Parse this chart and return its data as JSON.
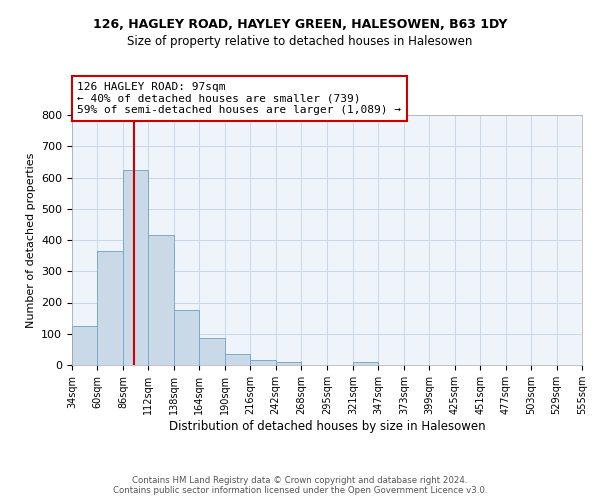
{
  "title1": "126, HAGLEY ROAD, HAYLEY GREEN, HALESOWEN, B63 1DY",
  "title2": "Size of property relative to detached houses in Halesowen",
  "xlabel": "Distribution of detached houses by size in Halesowen",
  "ylabel": "Number of detached properties",
  "footer1": "Contains HM Land Registry data © Crown copyright and database right 2024.",
  "footer2": "Contains public sector information licensed under the Open Government Licence v3.0.",
  "bin_edges": [
    34,
    60,
    86,
    112,
    138,
    164,
    190,
    216,
    242,
    268,
    295,
    321,
    347,
    373,
    399,
    425,
    451,
    477,
    503,
    529,
    555
  ],
  "bar_heights": [
    125,
    365,
    625,
    415,
    175,
    87,
    35,
    15,
    10,
    0,
    0,
    10,
    0,
    0,
    0,
    0,
    0,
    0,
    0,
    0
  ],
  "bar_color": "#c9d9e8",
  "bar_edge_color": "#7aaac8",
  "property_size": 97,
  "annotation_line1": "126 HAGLEY ROAD: 97sqm",
  "annotation_line2": "← 40% of detached houses are smaller (739)",
  "annotation_line3": "59% of semi-detached houses are larger (1,089) →",
  "vline_color": "#cc0000",
  "annotation_box_facecolor": "#ffffff",
  "annotation_box_edgecolor": "#cc0000",
  "grid_color": "#c8d8e8",
  "ylim": [
    0,
    800
  ],
  "yticks": [
    0,
    100,
    200,
    300,
    400,
    500,
    600,
    700,
    800
  ],
  "bg_color": "#eef4fa",
  "title1_fontsize": 9,
  "title2_fontsize": 8.5,
  "ylabel_fontsize": 8,
  "xlabel_fontsize": 8.5,
  "tick_fontsize": 7,
  "footer_fontsize": 6.2
}
